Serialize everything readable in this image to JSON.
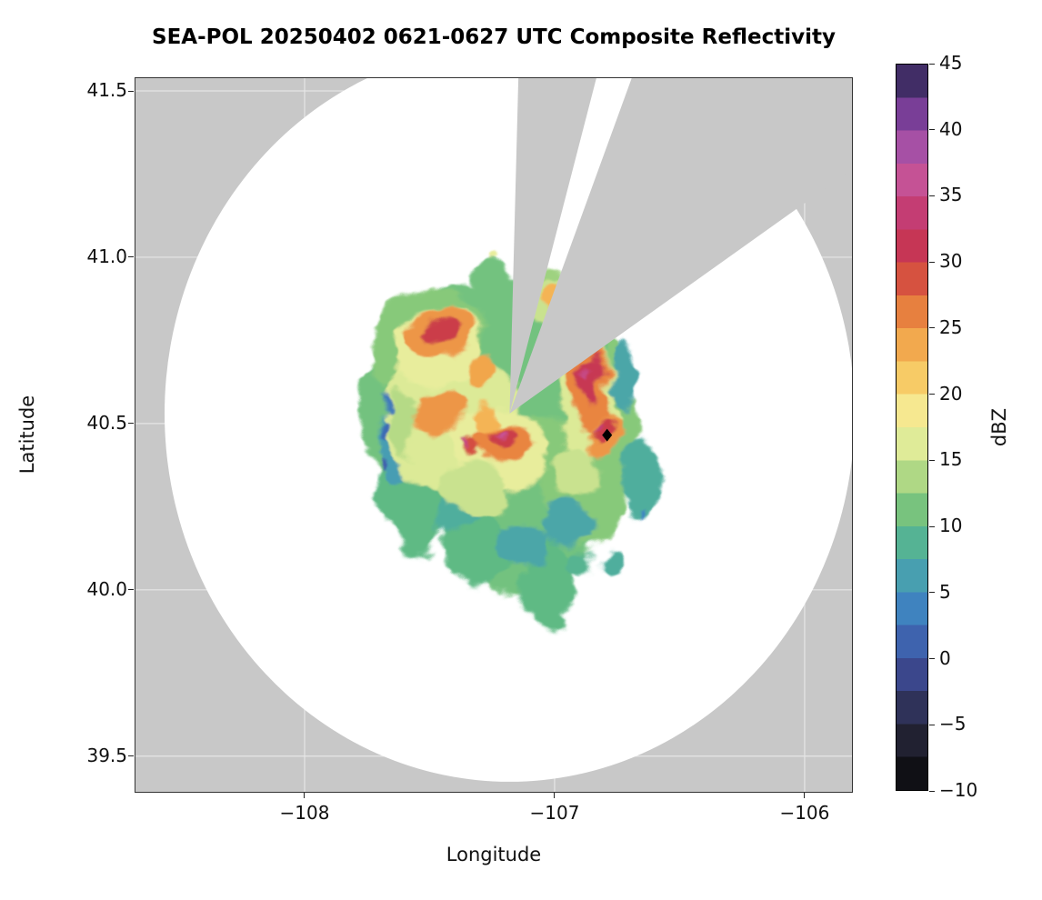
{
  "chart_data": {
    "type": "heatmap",
    "title": "SEA-POL 20250402 0621-0627 UTC Composite Reflectivity",
    "xlabel": "Longitude",
    "ylabel": "Latitude",
    "units": "dBZ",
    "xlim": [
      -108.68,
      -105.807
    ],
    "ylim": [
      39.39,
      41.541
    ],
    "grid": true,
    "x_ticks": [
      {
        "value": -108,
        "label": "−108"
      },
      {
        "value": -107,
        "label": "−107"
      },
      {
        "value": -106,
        "label": "−106"
      }
    ],
    "y_ticks": [
      {
        "value": 39.5,
        "label": "39.5"
      },
      {
        "value": 40.0,
        "label": "40.0"
      },
      {
        "value": 40.5,
        "label": "40.5"
      },
      {
        "value": 41.0,
        "label": "41.0"
      },
      {
        "value": 41.5,
        "label": "41.5"
      }
    ],
    "colors": {
      "outside_range": "#c8c8c8",
      "coverage": "#ffffff",
      "blocked_sector": "#c8c8c8",
      "grid": "#ffffff",
      "marker": "#000000",
      "frame": "#333333"
    },
    "radar": {
      "center_lon": -107.18,
      "center_lat": 40.53,
      "range_lon_deg": 1.38,
      "range_lat_deg": 1.107,
      "blocked_sectors_az_deg": [
        {
          "az_start": 1.5,
          "az_end": 14.5
        },
        {
          "az_start": 20.0,
          "az_end": 54.5
        }
      ]
    },
    "site_marker": {
      "lon": -106.79,
      "lat": 40.465,
      "shape": "diamond",
      "color": "#000000"
    },
    "colorbar": {
      "label": "dBZ",
      "min": -10,
      "max": 45,
      "band_step": 2.5,
      "ticks": [
        {
          "value": 45,
          "label": "45"
        },
        {
          "value": 40,
          "label": "40"
        },
        {
          "value": 35,
          "label": "35"
        },
        {
          "value": 30,
          "label": "30"
        },
        {
          "value": 25,
          "label": "25"
        },
        {
          "value": 20,
          "label": "20"
        },
        {
          "value": 15,
          "label": "15"
        },
        {
          "value": 10,
          "label": "10"
        },
        {
          "value": 5,
          "label": "5"
        },
        {
          "value": 0,
          "label": "0"
        },
        {
          "value": -5,
          "label": "−5"
        },
        {
          "value": -10,
          "label": "−10"
        }
      ],
      "stops": [
        [
          -10,
          "#050507"
        ],
        [
          -8,
          "#16161d"
        ],
        [
          -6,
          "#232334"
        ],
        [
          -4,
          "#2e3054"
        ],
        [
          -2,
          "#393e7d"
        ],
        [
          0,
          "#3f55a5"
        ],
        [
          2,
          "#3e6cb4"
        ],
        [
          4,
          "#3f86c0"
        ],
        [
          6,
          "#479db3"
        ],
        [
          8,
          "#4fae9d"
        ],
        [
          10,
          "#5fba84"
        ],
        [
          12,
          "#87c97a"
        ],
        [
          14,
          "#b5da86"
        ],
        [
          16,
          "#dcea97"
        ],
        [
          18,
          "#f4efa0"
        ],
        [
          20,
          "#f8dc76"
        ],
        [
          22,
          "#f6c15d"
        ],
        [
          24,
          "#f1a64c"
        ],
        [
          26,
          "#e98540"
        ],
        [
          28,
          "#dc5e3a"
        ],
        [
          30,
          "#cb3d49"
        ],
        [
          32,
          "#c3325c"
        ],
        [
          34,
          "#c43e76"
        ],
        [
          36,
          "#c85192"
        ],
        [
          38,
          "#b355a6"
        ],
        [
          40,
          "#8f47a2"
        ],
        [
          42,
          "#6c3991"
        ],
        [
          44,
          "#3b2b60"
        ],
        [
          45,
          "#1d1534"
        ]
      ]
    },
    "echoes": [
      {
        "lon": -107.38,
        "lat": 40.55,
        "rx": 0.4,
        "ry": 0.36,
        "rot": 0,
        "dbz": 11
      },
      {
        "lon": -107.12,
        "lat": 40.28,
        "rx": 0.3,
        "ry": 0.3,
        "rot": 0,
        "dbz": 11
      },
      {
        "lon": -106.88,
        "lat": 40.48,
        "rx": 0.2,
        "ry": 0.34,
        "rot": 0,
        "dbz": 12
      },
      {
        "lon": -107.05,
        "lat": 40.72,
        "rx": 0.24,
        "ry": 0.2,
        "rot": 0,
        "dbz": 11
      },
      {
        "lon": -107.52,
        "lat": 40.74,
        "rx": 0.24,
        "ry": 0.16,
        "rot": -25,
        "dbz": 12
      },
      {
        "lon": -107.55,
        "lat": 40.33,
        "rx": 0.16,
        "ry": 0.22,
        "rot": 0,
        "dbz": 10
      },
      {
        "lon": -107.3,
        "lat": 40.12,
        "rx": 0.14,
        "ry": 0.1,
        "rot": 15,
        "dbz": 10
      },
      {
        "lon": -107.02,
        "lat": 40.02,
        "rx": 0.1,
        "ry": 0.13,
        "rot": 0,
        "dbz": 10
      },
      {
        "lon": -106.65,
        "lat": 40.33,
        "rx": 0.07,
        "ry": 0.13,
        "rot": 0,
        "dbz": 8
      },
      {
        "lon": -107.27,
        "lat": 40.94,
        "rx": 0.07,
        "ry": 0.06,
        "rot": 0,
        "dbz": 11
      },
      {
        "lon": -107.03,
        "lat": 40.91,
        "rx": 0.05,
        "ry": 0.06,
        "rot": 0,
        "dbz": 13
      },
      {
        "lon": -107.22,
        "lat": 40.88,
        "rx": 0.06,
        "ry": 0.05,
        "rot": 0,
        "dbz": 11
      },
      {
        "lon": -106.9,
        "lat": 40.08,
        "rx": 0.05,
        "ry": 0.04,
        "rot": 0,
        "dbz": 9
      },
      {
        "lon": -106.78,
        "lat": 40.1,
        "rx": 0.04,
        "ry": 0.03,
        "rot": 0,
        "dbz": 8
      },
      {
        "lon": -107.64,
        "lat": 40.44,
        "rx": 0.07,
        "ry": 0.12,
        "rot": 0,
        "dbz": 6
      },
      {
        "lon": -106.95,
        "lat": 40.2,
        "rx": 0.09,
        "ry": 0.07,
        "rot": 0,
        "dbz": 7
      },
      {
        "lon": -107.12,
        "lat": 40.14,
        "rx": 0.1,
        "ry": 0.06,
        "rot": 0,
        "dbz": 7
      },
      {
        "lon": -106.73,
        "lat": 40.64,
        "rx": 0.05,
        "ry": 0.1,
        "rot": 0,
        "dbz": 7
      },
      {
        "lon": -107.38,
        "lat": 40.22,
        "rx": 0.09,
        "ry": 0.06,
        "rot": 0,
        "dbz": 8
      },
      {
        "lon": -107.45,
        "lat": 40.62,
        "rx": 0.06,
        "ry": 0.05,
        "rot": 0,
        "dbz": 9
      },
      {
        "lon": -107.4,
        "lat": 40.5,
        "rx": 0.28,
        "ry": 0.2,
        "rot": 0,
        "dbz": 16
      },
      {
        "lon": -107.22,
        "lat": 40.42,
        "rx": 0.2,
        "ry": 0.13,
        "rot": 10,
        "dbz": 17
      },
      {
        "lon": -107.47,
        "lat": 40.73,
        "rx": 0.18,
        "ry": 0.11,
        "rot": -25,
        "dbz": 17
      },
      {
        "lon": -106.87,
        "lat": 40.55,
        "rx": 0.11,
        "ry": 0.18,
        "rot": 0,
        "dbz": 16
      },
      {
        "lon": -107.02,
        "lat": 40.86,
        "rx": 0.11,
        "ry": 0.07,
        "rot": 0,
        "dbz": 15
      },
      {
        "lon": -107.32,
        "lat": 40.3,
        "rx": 0.14,
        "ry": 0.09,
        "rot": 20,
        "dbz": 15
      },
      {
        "lon": -106.92,
        "lat": 40.35,
        "rx": 0.09,
        "ry": 0.07,
        "rot": 0,
        "dbz": 15
      },
      {
        "lon": -107.6,
        "lat": 40.5,
        "rx": 0.06,
        "ry": 0.09,
        "rot": 0,
        "dbz": 14
      },
      {
        "lon": -107.24,
        "lat": 41.01,
        "rx": 0.02,
        "ry": 0.015,
        "rot": 0,
        "dbz": 17
      },
      {
        "lon": -107.46,
        "lat": 40.77,
        "rx": 0.13,
        "ry": 0.07,
        "rot": -20,
        "dbz": 25
      },
      {
        "lon": -107.3,
        "lat": 40.66,
        "rx": 0.07,
        "ry": 0.05,
        "rot": -30,
        "dbz": 24
      },
      {
        "lon": -107.46,
        "lat": 40.53,
        "rx": 0.09,
        "ry": 0.07,
        "rot": 0,
        "dbz": 25
      },
      {
        "lon": -107.2,
        "lat": 40.44,
        "rx": 0.12,
        "ry": 0.06,
        "rot": 8,
        "dbz": 26
      },
      {
        "lon": -106.86,
        "lat": 40.6,
        "rx": 0.08,
        "ry": 0.12,
        "rot": 0,
        "dbz": 26
      },
      {
        "lon": -106.8,
        "lat": 40.45,
        "rx": 0.06,
        "ry": 0.08,
        "rot": 0,
        "dbz": 25
      },
      {
        "lon": -107.0,
        "lat": 40.88,
        "rx": 0.045,
        "ry": 0.035,
        "rot": 0,
        "dbz": 23
      },
      {
        "lon": -107.28,
        "lat": 40.52,
        "rx": 0.05,
        "ry": 0.04,
        "rot": 0,
        "dbz": 23
      },
      {
        "lon": -106.85,
        "lat": 40.63,
        "rx": 0.045,
        "ry": 0.07,
        "rot": 0,
        "dbz": 31
      },
      {
        "lon": -106.81,
        "lat": 40.47,
        "rx": 0.035,
        "ry": 0.05,
        "rot": 0,
        "dbz": 30
      },
      {
        "lon": -107.45,
        "lat": 40.78,
        "rx": 0.055,
        "ry": 0.03,
        "rot": -20,
        "dbz": 30
      },
      {
        "lon": -107.21,
        "lat": 40.46,
        "rx": 0.05,
        "ry": 0.028,
        "rot": 5,
        "dbz": 30
      },
      {
        "lon": -107.34,
        "lat": 40.43,
        "rx": 0.035,
        "ry": 0.022,
        "rot": 0,
        "dbz": 29
      },
      {
        "lon": -107.22,
        "lat": 40.47,
        "rx": 0.016,
        "ry": 0.012,
        "rot": 0,
        "dbz": 36
      },
      {
        "lon": -106.86,
        "lat": 40.64,
        "rx": 0.014,
        "ry": 0.02,
        "rot": 0,
        "dbz": 35
      },
      {
        "lon": -107.36,
        "lat": 40.44,
        "rx": 0.012,
        "ry": 0.012,
        "rot": 0,
        "dbz": 35
      },
      {
        "lon": -106.83,
        "lat": 40.49,
        "rx": 0.012,
        "ry": 0.014,
        "rot": 0,
        "dbz": 34
      },
      {
        "lon": -107.68,
        "lat": 40.48,
        "rx": 0.018,
        "ry": 0.03,
        "rot": 0,
        "dbz": 2
      },
      {
        "lon": -107.66,
        "lat": 40.56,
        "rx": 0.014,
        "ry": 0.02,
        "rot": 0,
        "dbz": 3
      },
      {
        "lon": -107.7,
        "lat": 40.38,
        "rx": 0.014,
        "ry": 0.024,
        "rot": 0,
        "dbz": 1
      },
      {
        "lon": -106.64,
        "lat": 40.22,
        "rx": 0.012,
        "ry": 0.02,
        "rot": 0,
        "dbz": 4
      }
    ]
  }
}
